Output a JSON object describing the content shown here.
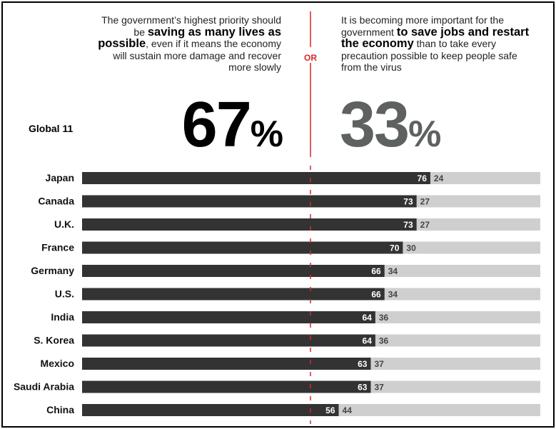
{
  "statements": {
    "left": {
      "pre": "The government’s highest priority should be ",
      "bold": "saving as many lives as possible",
      "post": ", even if it means the economy will sustain more damage and recover more slowly"
    },
    "right": {
      "pre": "It is becoming more important for the government ",
      "bold": "to save jobs and restart the economy",
      "post": " than to take every precaution possible to keep people safe from the virus"
    },
    "or_label": "OR"
  },
  "global": {
    "label": "Global 11",
    "left_value": "67",
    "right_value": "33",
    "percent_sign": "%"
  },
  "colors": {
    "left_bar": "#333333",
    "right_bar": "#cfcfcf",
    "divider": "#d9262b",
    "left_big": "#000000",
    "right_big": "#5e625f"
  },
  "chart_data": {
    "type": "bar",
    "orientation": "horizontal",
    "stacked": true,
    "categories": [
      "Japan",
      "Canada",
      "U.K.",
      "France",
      "Germany",
      "U.S.",
      "India",
      "S. Korea",
      "Mexico",
      "Saudi Arabia",
      "China"
    ],
    "series": [
      {
        "values": [
          76,
          73,
          73,
          70,
          66,
          66,
          64,
          64,
          63,
          63,
          56
        ]
      },
      {
        "values": [
          24,
          27,
          27,
          30,
          34,
          34,
          36,
          36,
          37,
          37,
          44
        ]
      }
    ],
    "xlim": [
      0,
      100
    ],
    "reference_line": 50
  }
}
